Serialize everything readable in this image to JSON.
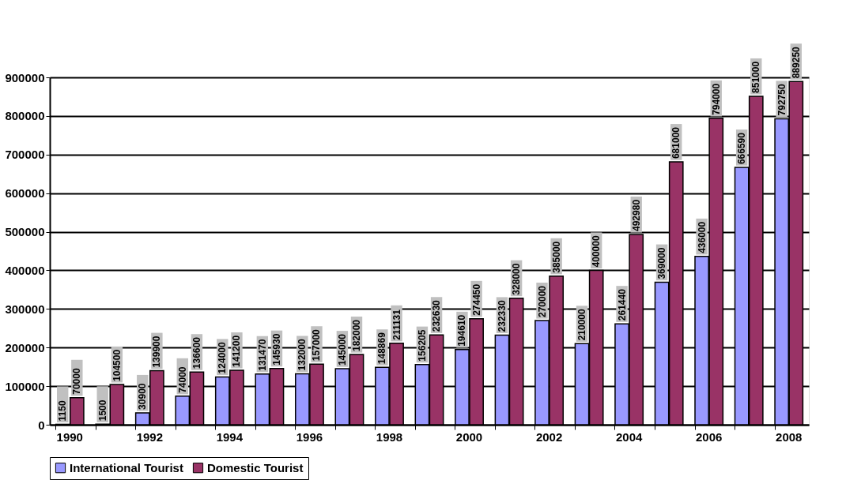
{
  "chart_data": {
    "type": "bar",
    "categories": [
      "1990",
      null,
      "1992",
      null,
      "1994",
      null,
      "1996",
      null,
      "1998",
      null,
      "2000",
      null,
      "2002",
      null,
      "2004",
      null,
      "2006",
      null,
      "2008"
    ],
    "series": [
      {
        "name": "International Tourist",
        "color": "#9999ff",
        "values": [
          1150,
          1500,
          30900,
          74000,
          124000,
          131470,
          132000,
          145000,
          148869,
          156205,
          194610,
          232330,
          270000,
          210000,
          261440,
          369000,
          436000,
          666590,
          792750
        ]
      },
      {
        "name": "Domestic Tourist",
        "color": "#993366",
        "values": [
          70000,
          104500,
          139900,
          136600,
          141200,
          145930,
          157000,
          182000,
          211131,
          232630,
          274450,
          328000,
          385000,
          400000,
          492980,
          681000,
          794000,
          851000,
          889250
        ]
      }
    ],
    "ylim": [
      0,
      900000
    ],
    "yticks": [
      0,
      100000,
      200000,
      300000,
      400000,
      500000,
      600000,
      700000,
      800000,
      900000
    ],
    "grid": "y",
    "legend": "bottom",
    "data_labels": true
  }
}
